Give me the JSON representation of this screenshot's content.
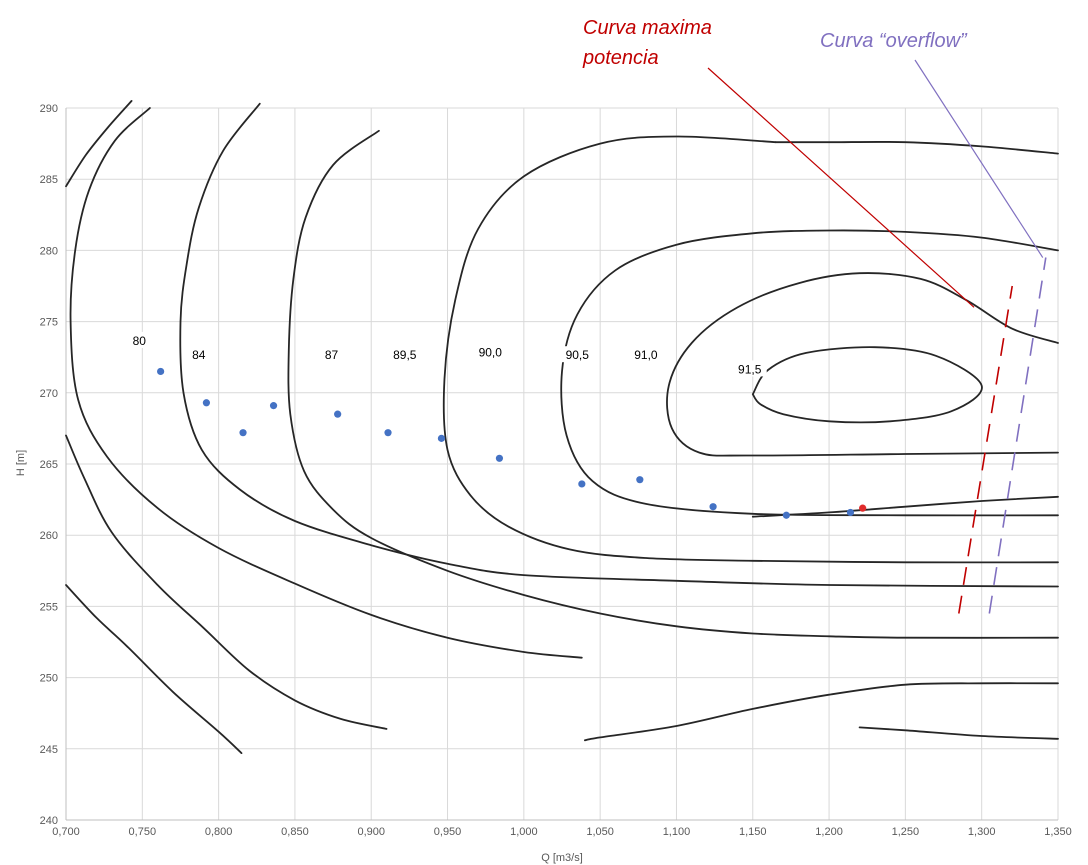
{
  "chart_data": {
    "type": "line",
    "title": "",
    "xlabel": "Q [m3/s]",
    "ylabel": "H [m]",
    "xlim": [
      0.7,
      1.35
    ],
    "ylim": [
      240,
      290
    ],
    "xticks": [
      "0,700",
      "0,750",
      "0,800",
      "0,850",
      "0,900",
      "0,950",
      "1,000",
      "1,050",
      "1,100",
      "1,150",
      "1,200",
      "1,250",
      "1,300",
      "1,350"
    ],
    "yticks": [
      "240",
      "245",
      "250",
      "255",
      "260",
      "265",
      "270",
      "275",
      "280",
      "285",
      "290"
    ],
    "grid": true,
    "legend": "none",
    "contours": [
      {
        "label": "80",
        "label_pos": [
          0.748,
          273.5
        ],
        "points": [
          [
            0.7,
            284.5
          ],
          [
            0.713,
            286.7
          ],
          [
            0.728,
            288.7
          ],
          [
            0.743,
            290.5
          ]
        ]
      },
      {
        "label": "80",
        "label_pos": null,
        "points": [
          [
            0.7,
            267.0
          ],
          [
            0.712,
            264.0
          ],
          [
            0.73,
            260.2
          ],
          [
            0.76,
            256.5
          ],
          [
            0.79,
            253.5
          ],
          [
            0.82,
            250.5
          ],
          [
            0.85,
            248.4
          ],
          [
            0.88,
            247.1
          ],
          [
            0.91,
            246.4
          ]
        ]
      },
      {
        "label": "80",
        "label_pos": null,
        "points": [
          [
            0.7,
            256.5
          ],
          [
            0.72,
            254.2
          ],
          [
            0.74,
            252.2
          ],
          [
            0.77,
            249.0
          ],
          [
            0.8,
            246.2
          ],
          [
            0.815,
            244.7
          ]
        ]
      },
      {
        "label": "84",
        "label_pos": [
          0.787,
          272.5
        ],
        "points": [
          [
            0.755,
            290.0
          ],
          [
            0.732,
            287.7
          ],
          [
            0.715,
            284.2
          ],
          [
            0.706,
            280.0
          ],
          [
            0.703,
            275.0
          ],
          [
            0.708,
            269.5
          ],
          [
            0.727,
            265.5
          ],
          [
            0.76,
            261.9
          ],
          [
            0.8,
            259.1
          ],
          [
            0.85,
            256.6
          ],
          [
            0.9,
            254.4
          ],
          [
            0.95,
            252.8
          ],
          [
            1.0,
            251.8
          ],
          [
            1.038,
            251.4
          ]
        ]
      },
      {
        "label": "87",
        "label_pos": [
          0.874,
          272.5
        ],
        "points": [
          [
            0.827,
            290.3
          ],
          [
            0.803,
            287.0
          ],
          [
            0.787,
            283.0
          ],
          [
            0.779,
            279.0
          ],
          [
            0.775,
            275.0
          ],
          [
            0.777,
            270.0
          ],
          [
            0.789,
            266.0
          ],
          [
            0.814,
            263.2
          ],
          [
            0.85,
            261.0
          ],
          [
            0.9,
            259.3
          ],
          [
            0.95,
            258.0
          ],
          [
            1.0,
            257.2
          ],
          [
            1.1,
            256.8
          ],
          [
            1.2,
            256.5
          ],
          [
            1.35,
            256.4
          ]
        ]
      },
      {
        "label": "89,5",
        "label_pos": [
          0.922,
          272.5
        ],
        "points": [
          [
            0.905,
            288.4
          ],
          [
            0.875,
            286.0
          ],
          [
            0.857,
            282.3
          ],
          [
            0.849,
            278.0
          ],
          [
            0.846,
            273.0
          ],
          [
            0.847,
            268.5
          ],
          [
            0.856,
            264.5
          ],
          [
            0.875,
            261.8
          ],
          [
            0.9,
            259.8
          ],
          [
            0.95,
            257.5
          ],
          [
            1.0,
            255.8
          ],
          [
            1.05,
            254.5
          ],
          [
            1.1,
            253.6
          ],
          [
            1.15,
            253.1
          ],
          [
            1.2,
            252.9
          ],
          [
            1.25,
            252.8
          ],
          [
            1.35,
            252.8
          ]
        ]
      },
      {
        "label": "90,0",
        "label_pos": [
          0.978,
          272.7
        ],
        "points": [
          [
            1.165,
            287.6
          ],
          [
            1.1,
            288.0
          ],
          [
            1.05,
            287.5
          ],
          [
            1.0,
            285.2
          ],
          [
            0.97,
            281.5
          ],
          [
            0.955,
            276.5
          ],
          [
            0.948,
            271.0
          ],
          [
            0.95,
            266.0
          ],
          [
            0.965,
            262.8
          ],
          [
            0.99,
            260.6
          ],
          [
            1.03,
            259.0
          ],
          [
            1.08,
            258.4
          ],
          [
            1.15,
            258.2
          ],
          [
            1.25,
            258.1
          ],
          [
            1.35,
            258.1
          ]
        ]
      },
      {
        "label": "90,5",
        "label_pos": [
          1.035,
          272.5
        ],
        "points": [
          [
            1.35,
            286.8
          ],
          [
            1.3,
            287.3
          ],
          [
            1.25,
            287.6
          ],
          [
            1.2,
            287.6
          ],
          [
            1.165,
            287.6
          ]
        ]
      },
      {
        "label": "91,0",
        "label_pos": [
          1.08,
          272.5
        ],
        "points": [
          [
            1.35,
            280.0
          ],
          [
            1.3,
            280.9
          ],
          [
            1.25,
            281.3
          ],
          [
            1.2,
            281.4
          ],
          [
            1.15,
            281.2
          ],
          [
            1.1,
            280.4
          ],
          [
            1.06,
            278.6
          ],
          [
            1.035,
            275.5
          ],
          [
            1.025,
            271.5
          ],
          [
            1.028,
            267.0
          ],
          [
            1.045,
            263.8
          ],
          [
            1.08,
            262.2
          ],
          [
            1.15,
            261.5
          ],
          [
            1.25,
            261.4
          ],
          [
            1.35,
            261.4
          ]
        ]
      },
      {
        "label": "91,0",
        "label_pos": null,
        "points": [
          [
            1.35,
            273.5
          ],
          [
            1.32,
            274.5
          ],
          [
            1.29,
            276.5
          ],
          [
            1.26,
            278.0
          ],
          [
            1.22,
            278.4
          ],
          [
            1.18,
            277.7
          ],
          [
            1.14,
            276.0
          ],
          [
            1.11,
            273.5
          ],
          [
            1.095,
            270.5
          ],
          [
            1.097,
            267.5
          ],
          [
            1.115,
            265.8
          ],
          [
            1.15,
            265.6
          ],
          [
            1.25,
            265.7
          ],
          [
            1.35,
            265.8
          ]
        ]
      },
      {
        "label": "91,5",
        "label_pos": [
          1.148,
          271.5
        ],
        "points": [
          [
            1.15,
            269.9
          ],
          [
            1.16,
            271.6
          ],
          [
            1.185,
            272.8
          ],
          [
            1.23,
            273.2
          ],
          [
            1.27,
            272.6
          ],
          [
            1.3,
            270.5
          ],
          [
            1.28,
            268.7
          ],
          [
            1.24,
            268.0
          ],
          [
            1.2,
            268.0
          ],
          [
            1.17,
            268.5
          ],
          [
            1.155,
            269.2
          ],
          [
            1.15,
            269.9
          ]
        ]
      },
      {
        "label": "",
        "label_pos": null,
        "points": [
          [
            1.35,
            262.7
          ],
          [
            1.3,
            262.4
          ],
          [
            1.25,
            262.0
          ],
          [
            1.2,
            261.6
          ],
          [
            1.15,
            261.3
          ]
        ]
      },
      {
        "label": "",
        "label_pos": null,
        "points": [
          [
            1.35,
            249.6
          ],
          [
            1.3,
            249.6
          ],
          [
            1.25,
            249.5
          ],
          [
            1.2,
            248.8
          ],
          [
            1.15,
            247.8
          ],
          [
            1.1,
            246.6
          ],
          [
            1.05,
            245.8
          ],
          [
            1.04,
            245.6
          ]
        ]
      },
      {
        "label": "",
        "label_pos": null,
        "points": [
          [
            1.35,
            245.7
          ],
          [
            1.3,
            245.9
          ],
          [
            1.25,
            246.3
          ],
          [
            1.22,
            246.5
          ]
        ]
      }
    ],
    "scatter_series": [
      {
        "color": "#4472c4",
        "points": [
          [
            0.762,
            271.5
          ],
          [
            0.792,
            269.3
          ],
          [
            0.816,
            267.2
          ],
          [
            0.836,
            269.1
          ],
          [
            0.878,
            268.5
          ],
          [
            0.911,
            267.2
          ],
          [
            0.946,
            266.8
          ],
          [
            0.984,
            265.4
          ],
          [
            1.038,
            263.6
          ],
          [
            1.076,
            263.9
          ],
          [
            1.124,
            262.0
          ],
          [
            1.172,
            261.4
          ],
          [
            1.214,
            261.6
          ]
        ]
      },
      {
        "color": "#e02b2b",
        "points": [
          [
            1.222,
            261.9
          ]
        ]
      }
    ],
    "dashed_lines": [
      {
        "name": "Curva maxima potencia",
        "color": "#c00000",
        "points": [
          [
            1.285,
            254.5
          ],
          [
            1.32,
            277.5
          ]
        ]
      },
      {
        "name": "Curva “overflow”",
        "color": "#8070c0",
        "points": [
          [
            1.305,
            254.5
          ],
          [
            1.342,
            279.5
          ]
        ]
      }
    ],
    "annotations": [
      {
        "text_lines": [
          "Curva maxima",
          "potencia"
        ],
        "color": "#c00000",
        "arrow_to": [
          1.295,
          276.0
        ]
      },
      {
        "text_lines": [
          "Curva “overflow”"
        ],
        "color": "#8070c0",
        "arrow_to": [
          1.34,
          279.5
        ]
      }
    ]
  }
}
